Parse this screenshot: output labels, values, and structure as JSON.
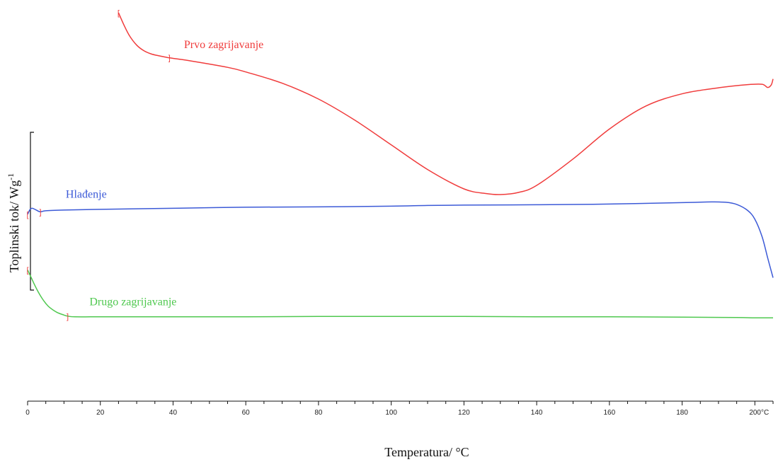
{
  "chart_data": {
    "type": "line",
    "title": "",
    "xlabel": "Temperatura/ °C",
    "ylabel": "Toplinski tok/ Wg",
    "ylabel_superscript": "-1",
    "xlim": [
      0,
      205
    ],
    "ylim": [
      0,
      100
    ],
    "x_ticks": [
      0,
      20,
      40,
      60,
      80,
      100,
      120,
      140,
      160,
      180,
      200
    ],
    "x_tick_labels": [
      "0",
      "20",
      "40",
      "60",
      "80",
      "100",
      "120",
      "140",
      "160",
      "180",
      "200°C"
    ],
    "x_minor_step": 5,
    "grid": false,
    "legend": "none",
    "series": [
      {
        "name": "Prvo zagrijavanje",
        "color": "#f03c3c",
        "label_x": 43,
        "label_y": 90,
        "x": [
          25,
          26.5,
          28,
          30,
          32,
          34,
          36,
          38,
          39,
          45,
          55,
          60,
          70,
          80,
          90,
          100,
          110,
          120,
          126,
          130,
          135,
          140,
          150,
          160,
          170,
          180,
          190,
          198,
          202,
          203.5,
          204.5,
          205
        ],
        "y": [
          100,
          96.5,
          93.5,
          90.8,
          89.2,
          88.3,
          87.8,
          87.4,
          87.2,
          86.3,
          84.5,
          83.2,
          80,
          75.5,
          69.5,
          62.5,
          55.5,
          50,
          48.7,
          48.4,
          49,
          51,
          58.5,
          67,
          73.5,
          77,
          78.7,
          79.6,
          79.7,
          78.8,
          79.5,
          81.2
        ]
      },
      {
        "name": "Hlađenje",
        "color": "#3c5ad7",
        "label_x": 10.5,
        "label_y": 47.5,
        "x": [
          0,
          0.7,
          1.3,
          2.2,
          3.5,
          5,
          10,
          20,
          40,
          60,
          80,
          100,
          110,
          120,
          140,
          160,
          180,
          188,
          192,
          195,
          198,
          200,
          202,
          203.5,
          205
        ],
        "y": [
          42.8,
          44.2,
          44.5,
          44.1,
          43.5,
          43.8,
          44,
          44.2,
          44.5,
          44.8,
          44.9,
          45.1,
          45.3,
          45.4,
          45.5,
          45.7,
          46.1,
          46.3,
          46.2,
          45.6,
          43.9,
          41.4,
          36.4,
          30.5,
          24.8
        ]
      },
      {
        "name": "Drugo zagrijavanje",
        "color": "#4fc84f",
        "label_x": 17,
        "label_y": 17,
        "x": [
          0,
          1,
          2,
          3,
          4,
          5,
          6,
          8,
          10,
          11,
          13,
          20,
          40,
          60,
          80,
          100,
          120,
          140,
          160,
          180,
          195,
          200,
          205
        ],
        "y": [
          27,
          24.8,
          22.6,
          20.6,
          18.9,
          17.5,
          16.4,
          15,
          14.2,
          13.9,
          13.7,
          13.7,
          13.7,
          13.7,
          13.8,
          13.8,
          13.8,
          13.7,
          13.7,
          13.6,
          13.5,
          13.4,
          13.4
        ]
      }
    ],
    "range_markers": [
      {
        "series": "Prvo zagrijavanje",
        "x": 25,
        "y": 100,
        "glyph": "[",
        "color": "#f03c3c"
      },
      {
        "series": "Prvo zagrijavanje",
        "x": 39,
        "y": 87.2,
        "glyph": "]",
        "color": "#f03c3c"
      },
      {
        "series": "Hlađenje",
        "x": 0,
        "y": 42.8,
        "glyph": "[",
        "color": "#f03c3c"
      },
      {
        "series": "Hlađenje",
        "x": 3.5,
        "y": 43.5,
        "glyph": "]",
        "color": "#f03c3c"
      },
      {
        "series": "Drugo zagrijavanje",
        "x": 0,
        "y": 27,
        "glyph": "[",
        "color": "#f03c3c"
      },
      {
        "series": "Drugo zagrijavanje",
        "x": 11,
        "y": 13.9,
        "glyph": "]",
        "color": "#f03c3c"
      }
    ]
  }
}
